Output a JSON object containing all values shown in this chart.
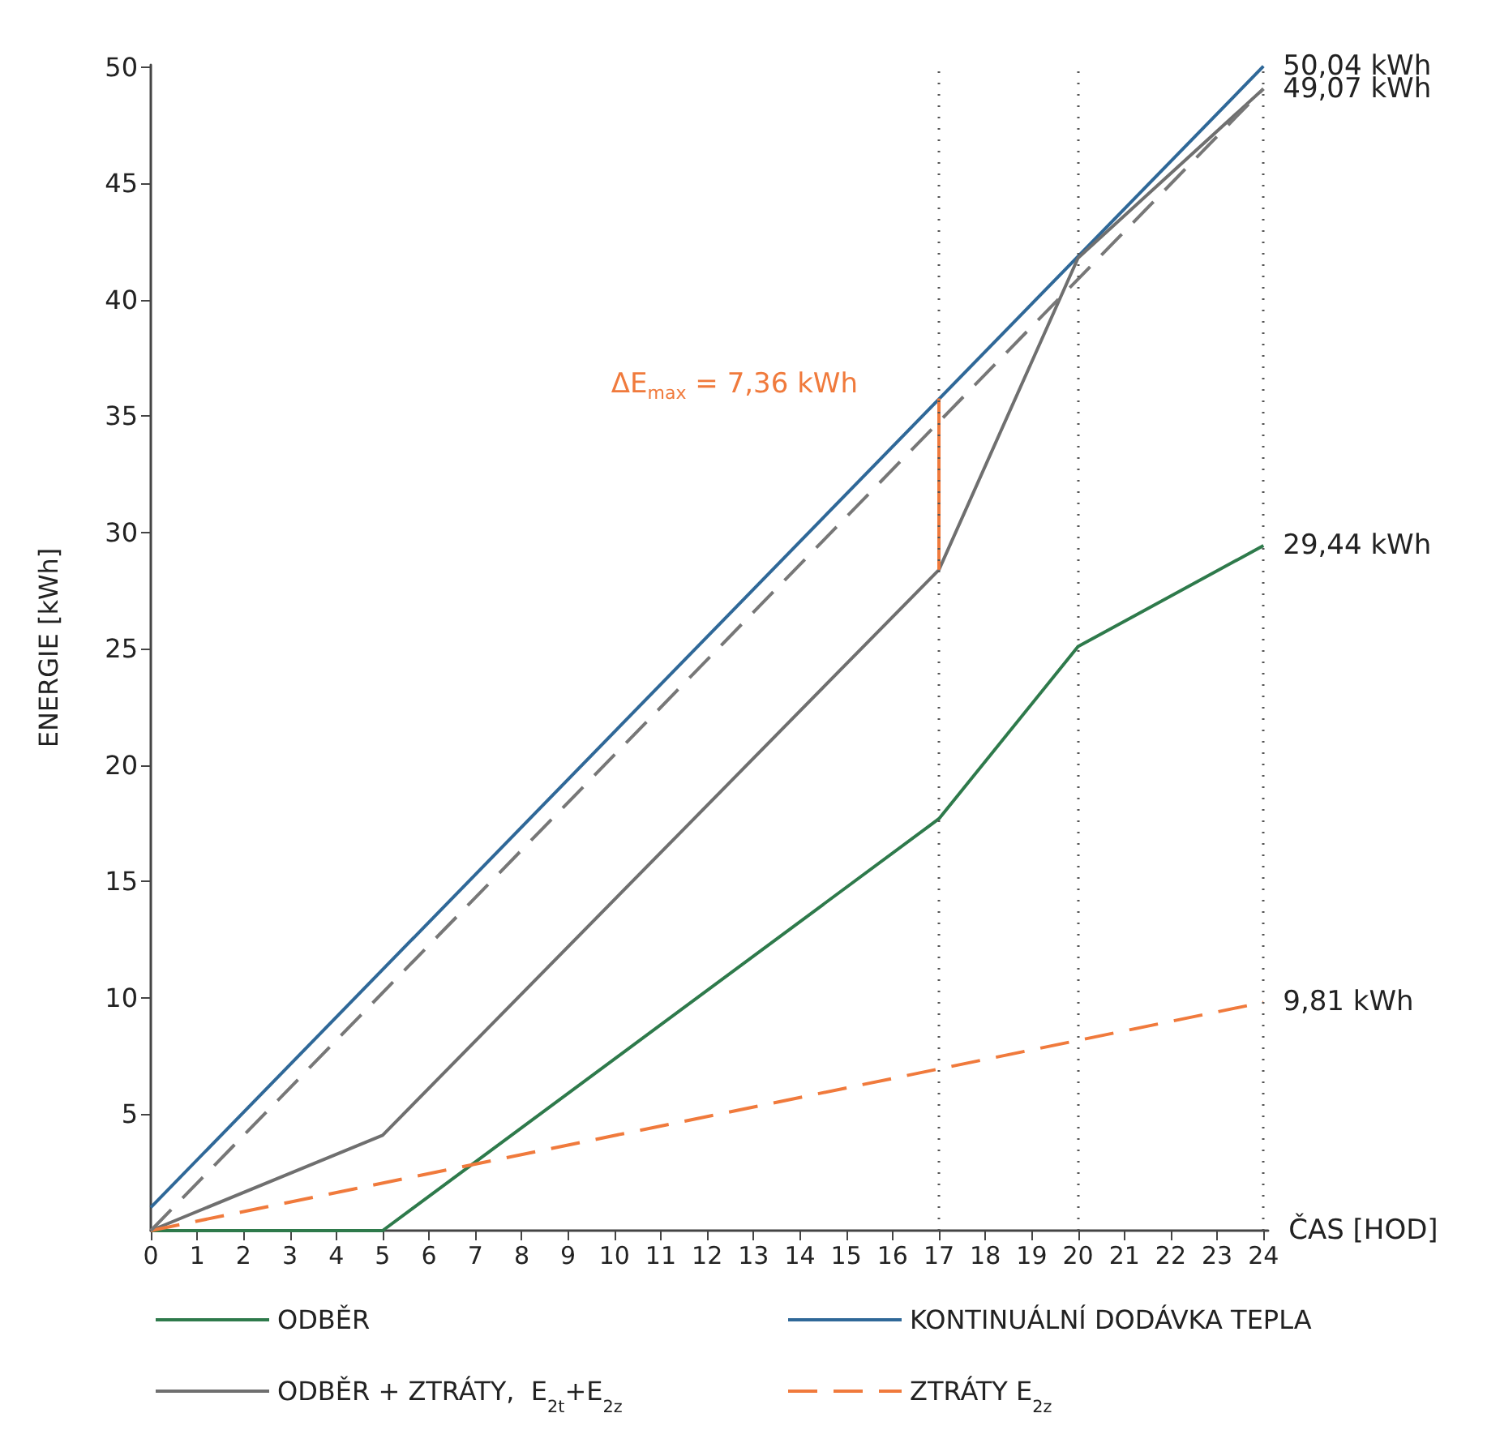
{
  "chart_data": {
    "type": "line",
    "xlabel": "ČAS [HOD]",
    "ylabel": "ENERGIE [kWh]",
    "xlim": [
      0,
      24.1
    ],
    "xticks": [
      0,
      1,
      2,
      3,
      4,
      5,
      6,
      7,
      8,
      9,
      10,
      11,
      12,
      13,
      14,
      15,
      16,
      17,
      18,
      19,
      20,
      21,
      22,
      23,
      24
    ],
    "ylim": [
      0,
      50.1
    ],
    "yticks": [
      5,
      10,
      15,
      20,
      25,
      30,
      35,
      40,
      45,
      50
    ],
    "grid": false,
    "legend": "bottom",
    "marker": "none",
    "series": [
      {
        "name": "ODBĚR",
        "color": "#2e7a4b",
        "x": [
          0,
          5,
          17,
          20,
          24
        ],
        "values": [
          0,
          0,
          17.7,
          25.1,
          29.44
        ],
        "value_labels": [
          null,
          null,
          null,
          null,
          "29,44 kWh"
        ]
      },
      {
        "name": "KONTINUÁLNÍ DODÁVKA TEPLA",
        "color": "#2f6898",
        "x": [
          0,
          24
        ],
        "values": [
          1.0,
          50.04
        ],
        "value_labels": [
          null,
          "50,04 kWh"
        ]
      },
      {
        "name": "ODBĚR + ZTRÁTY,  E$_{2t}$+E$_{2z}$",
        "color": "#6f6f6f",
        "x": [
          0,
          5,
          17,
          20,
          24
        ],
        "values": [
          0,
          4.1,
          28.4,
          41.8,
          49.07
        ],
        "value_labels": [
          null,
          null,
          null,
          null,
          "49,07 kWh"
        ]
      },
      {
        "name": "ZTRÁTY E$_{2z}$",
        "color": "#f07a3c",
        "line_style": "dashed",
        "x": [
          0,
          24
        ],
        "values": [
          0,
          9.81
        ],
        "value_labels": [
          null,
          "9,81 kWh"
        ]
      },
      {
        "color": "#777777",
        "line_style": "dashed",
        "x": [
          0,
          24
        ],
        "values": [
          0,
          49.07
        ]
      },
      {
        "color": "#f07a3c",
        "x": [
          17,
          17
        ],
        "values": [
          28.4,
          35.76
        ]
      }
    ],
    "ref_lines": [
      {
        "axis": "x",
        "value": 17,
        "color": "#555555",
        "line_style": "dotted"
      },
      {
        "axis": "x",
        "value": 20,
        "color": "#555555",
        "line_style": "dotted"
      },
      {
        "axis": "x",
        "value": 24,
        "color": "#555555",
        "line_style": "dotted"
      }
    ],
    "annotations": [
      {
        "text": "ΔE$_{max}$ = 7,36 kWh",
        "x": 17,
        "y": 35.76
      }
    ]
  }
}
